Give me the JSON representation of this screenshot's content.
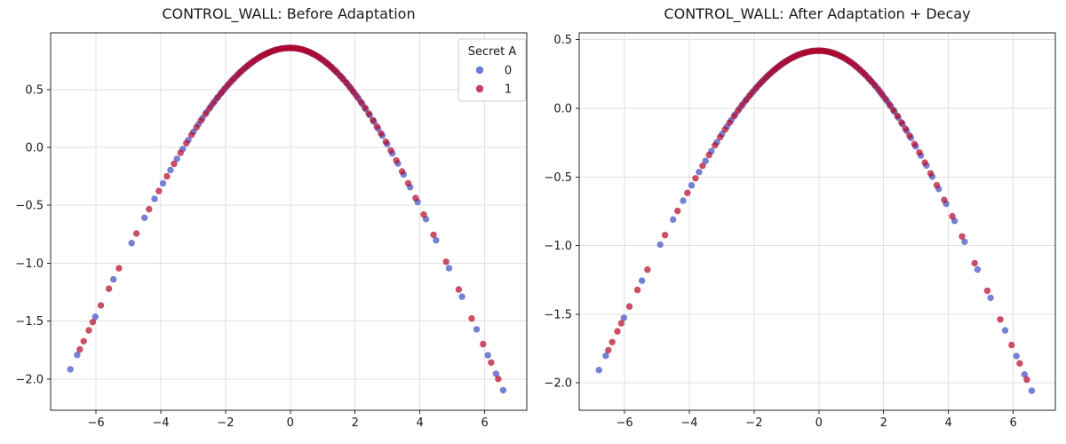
{
  "chart_data": [
    {
      "type": "scatter",
      "title": "CONTROL_WALL: Before Adaptation",
      "xlim": [
        -7.4,
        7.3
      ],
      "ylim": [
        -2.27,
        0.99
      ],
      "grid": true,
      "xticks": [
        {
          "v": -6,
          "label": "−6"
        },
        {
          "v": -4,
          "label": "−4"
        },
        {
          "v": -2,
          "label": "−2"
        },
        {
          "v": 0,
          "label": "0"
        },
        {
          "v": 2,
          "label": "2"
        },
        {
          "v": 4,
          "label": "4"
        },
        {
          "v": 6,
          "label": "6"
        }
      ],
      "yticks": [
        {
          "v": 0.5,
          "label": "0.5"
        },
        {
          "v": 0.0,
          "label": "0.0"
        },
        {
          "v": -0.5,
          "label": "−0.5"
        },
        {
          "v": -1.0,
          "label": "−1.0"
        },
        {
          "v": -1.5,
          "label": "−1.5"
        },
        {
          "v": -2.0,
          "label": "−2.0"
        }
      ],
      "curve": {
        "formula": "y = c0 - b*ln(cosh(x/s))",
        "c0": 0.86,
        "b": 2.1,
        "s_left": 3.4,
        "s_right": 3.15
      },
      "series": [
        {
          "name": "0",
          "samples": "class0",
          "color": "#3b4cc0"
        },
        {
          "name": "1",
          "samples": "class1",
          "color": "#b40426"
        }
      ],
      "legend": {
        "title": "Secret A",
        "entries": [
          {
            "label": "0",
            "color": "#3b4cc0"
          },
          {
            "label": "1",
            "color": "#b40426"
          }
        ]
      }
    },
    {
      "type": "scatter",
      "title": "CONTROL_WALL: After Adaptation + Decay",
      "xlim": [
        -7.4,
        7.3
      ],
      "ylim": [
        -2.2,
        0.55
      ],
      "grid": true,
      "xticks": [
        {
          "v": -6,
          "label": "−6"
        },
        {
          "v": -4,
          "label": "−4"
        },
        {
          "v": -2,
          "label": "−2"
        },
        {
          "v": 0,
          "label": "0"
        },
        {
          "v": 2,
          "label": "2"
        },
        {
          "v": 4,
          "label": "4"
        },
        {
          "v": 6,
          "label": "6"
        }
      ],
      "yticks": [
        {
          "v": 0.5,
          "label": "0.5"
        },
        {
          "v": 0.0,
          "label": "0.0"
        },
        {
          "v": -0.5,
          "label": "−0.5"
        },
        {
          "v": -1.0,
          "label": "−1.0"
        },
        {
          "v": -1.5,
          "label": "−1.5"
        },
        {
          "v": -2.0,
          "label": "−2.0"
        }
      ],
      "curve": {
        "formula": "y = c0 - b*ln(cosh(x/s))",
        "c0": 0.42,
        "b": 1.76,
        "s_left": 3.4,
        "s_right": 3.15
      },
      "series": [
        {
          "name": "0",
          "samples": "class0",
          "color": "#3b4cc0"
        },
        {
          "name": "1",
          "samples": "class1",
          "color": "#b40426"
        }
      ],
      "legend": null
    }
  ],
  "scatter_x_samples": {
    "note": "x positions of the scatter points (shared by both panels); y follows each panel's curve formula",
    "class0": [
      -6.79,
      -6.58,
      -6.02,
      -5.46,
      -4.9,
      -4.5,
      -4.19,
      -3.93,
      -3.7,
      -3.5,
      -3.32,
      -3.15,
      -2.99,
      -2.84,
      -2.71,
      -2.58,
      -2.45,
      -2.33,
      -2.22,
      -2.11,
      -2.0,
      -1.9,
      -1.8,
      -1.71,
      -1.61,
      -1.52,
      -1.42,
      -1.34,
      -1.25,
      -1.16,
      -1.08,
      -0.99,
      -0.91,
      -0.83,
      -0.75,
      -0.67,
      -0.59,
      -0.51,
      -0.43,
      -0.35,
      -0.27,
      -0.19,
      -0.12,
      -0.04,
      0.04,
      0.12,
      0.19,
      0.27,
      0.35,
      0.43,
      0.51,
      0.59,
      0.67,
      0.75,
      0.83,
      0.91,
      0.99,
      1.08,
      1.16,
      1.25,
      1.34,
      1.42,
      1.52,
      1.61,
      1.71,
      1.8,
      1.9,
      2.0,
      2.11,
      2.22,
      2.33,
      2.45,
      2.58,
      2.71,
      2.84,
      2.99,
      3.15,
      3.32,
      3.5,
      3.7,
      3.93,
      4.19,
      4.5,
      4.9,
      5.3,
      5.75,
      6.1,
      6.35,
      6.57
    ],
    "class1": [
      -6.5,
      -6.38,
      -6.22,
      -6.1,
      -5.85,
      -5.6,
      -5.29,
      -4.75,
      -4.36,
      -4.06,
      -3.81,
      -3.59,
      -3.39,
      -3.21,
      -3.05,
      -2.9,
      -2.76,
      -2.62,
      -2.5,
      -2.38,
      -2.26,
      -2.15,
      -2.05,
      -1.94,
      -1.84,
      -1.75,
      -1.65,
      -1.56,
      -1.47,
      -1.38,
      -1.3,
      -1.21,
      -1.13,
      -1.04,
      -0.96,
      -0.88,
      -0.8,
      -0.72,
      -0.65,
      -0.57,
      -0.49,
      -0.42,
      -0.34,
      -0.26,
      -0.19,
      -0.11,
      -0.04,
      0.02,
      0.09,
      0.16,
      0.23,
      0.31,
      0.38,
      0.46,
      0.53,
      0.61,
      0.69,
      0.77,
      0.85,
      0.93,
      1.01,
      1.1,
      1.18,
      1.27,
      1.36,
      1.45,
      1.55,
      1.64,
      1.74,
      1.85,
      1.95,
      2.06,
      2.18,
      2.3,
      2.42,
      2.55,
      2.67,
      2.8,
      2.95,
      3.1,
      3.27,
      3.45,
      3.64,
      3.87,
      4.12,
      4.42,
      4.81,
      5.2,
      5.6,
      5.95,
      6.2,
      6.42
    ]
  },
  "style": {
    "marker_alpha": 0.7,
    "grid_color": "#e0e0e0",
    "spine_color": "#262626",
    "text_color": "#1a1a1a",
    "background": "#ffffff",
    "legend_border": "#cccccc"
  }
}
